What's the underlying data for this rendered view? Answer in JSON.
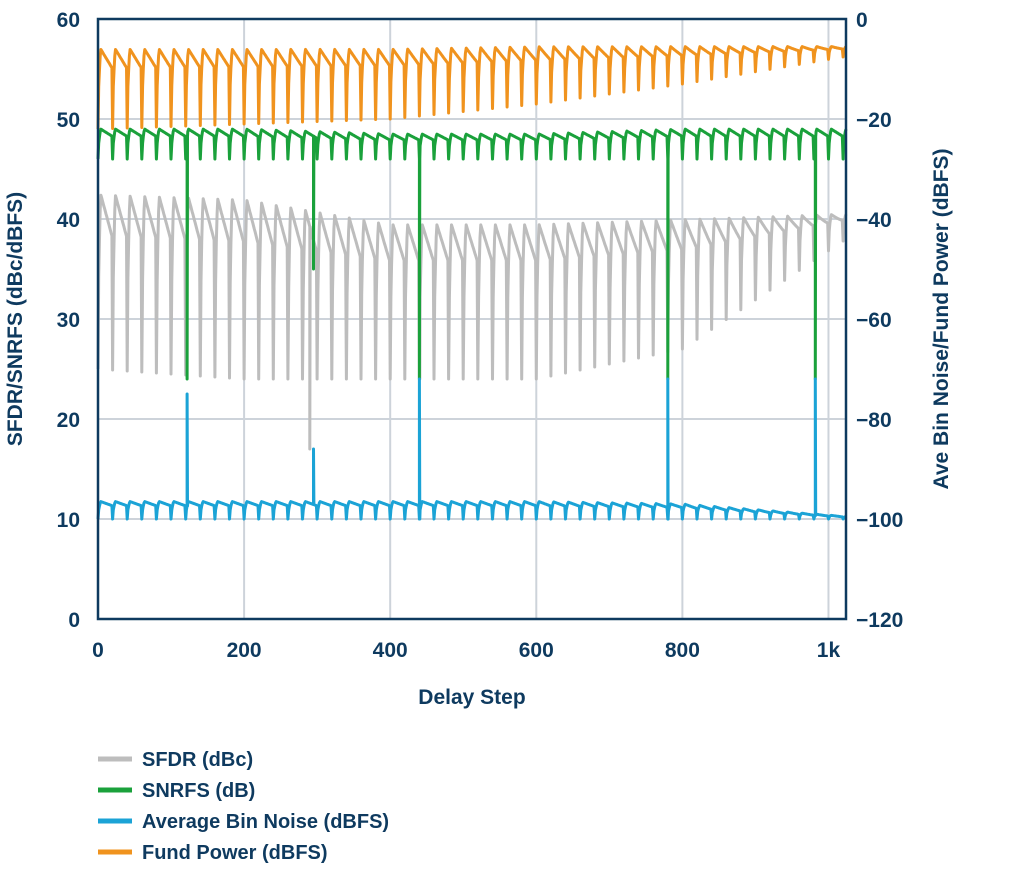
{
  "colors": {
    "axis_text": "#0e3a5f",
    "grid": "#cdd3da",
    "frame": "#0e3a5f",
    "sfdr": "#bdbdbd",
    "snrfs": "#1aa13b",
    "bin_noise": "#1ba3d6",
    "fund_power": "#f0931e"
  },
  "chart_data": {
    "type": "line",
    "xlabel": "Delay Step",
    "ylabel_left": "SFDR/SNRFS (dBc/dBFS)",
    "ylabel_right": "Ave Bin Noise/Fund Power (dBFS)",
    "xlim": [
      0,
      1024
    ],
    "ylim_left": [
      0,
      60
    ],
    "ylim_right": [
      -120,
      0
    ],
    "x_ticks": [
      0,
      200,
      400,
      600,
      800,
      1000
    ],
    "x_tick_labels": [
      "0",
      "200",
      "400",
      "600",
      "800",
      "1k"
    ],
    "y_left_ticks": [
      0,
      10,
      20,
      30,
      40,
      50,
      60
    ],
    "y_left_tick_labels": [
      "0",
      "10",
      "20",
      "30",
      "40",
      "50",
      "60"
    ],
    "y_right_ticks": [
      -120,
      -100,
      -80,
      -60,
      -40,
      -20,
      0
    ],
    "y_right_tick_labels": [
      "−120",
      "−100",
      "−80",
      "−60",
      "−40",
      "−20",
      "0"
    ],
    "grid": true,
    "legend_position": "bottom-left",
    "series": [
      {
        "name": "SFDR (dBc)",
        "axis": "left",
        "color_key": "sfdr",
        "pattern": "sawtooth",
        "dip_period": 20,
        "envelope_x": [
          0,
          200,
          400,
          600,
          800,
          1024
        ],
        "peak": [
          42.5,
          42,
          39.5,
          39.5,
          40,
          40.5
        ],
        "trough": [
          25,
          24,
          24,
          24,
          27,
          38
        ],
        "spikes": [
          {
            "x": 290,
            "value": 17
          },
          {
            "x": 440,
            "value": 24
          }
        ]
      },
      {
        "name": "SNRFS (dB)",
        "axis": "left",
        "color_key": "snrfs",
        "pattern": "sawtooth",
        "dip_period": 20,
        "envelope_x": [
          0,
          200,
          400,
          600,
          800,
          1024
        ],
        "peak": [
          49,
          49,
          48.5,
          48.5,
          49,
          49
        ],
        "trough": [
          46,
          46,
          46,
          46,
          46,
          46
        ],
        "spikes": [
          {
            "x": 122,
            "value": 24
          },
          {
            "x": 295,
            "value": 35
          },
          {
            "x": 440,
            "value": 24
          },
          {
            "x": 780,
            "value": 24
          },
          {
            "x": 982,
            "value": 24
          }
        ]
      },
      {
        "name": "Average Bin Noise (dBFS)",
        "axis": "right",
        "color_key": "bin_noise",
        "pattern": "sawtooth",
        "dip_period": 20,
        "envelope_x": [
          0,
          200,
          400,
          600,
          800,
          1024
        ],
        "peak": [
          -96.5,
          -96.5,
          -96.5,
          -96.5,
          -97,
          -99.5
        ],
        "trough": [
          -100,
          -100,
          -100,
          -100,
          -100,
          -100
        ],
        "spikes": [
          {
            "x": 122,
            "value": -75
          },
          {
            "x": 295,
            "value": -86
          },
          {
            "x": 440,
            "value": -72
          },
          {
            "x": 780,
            "value": -72
          },
          {
            "x": 982,
            "value": -72
          }
        ]
      },
      {
        "name": "Fund Power (dBFS)",
        "axis": "right",
        "color_key": "fund_power",
        "pattern": "sawtooth",
        "dip_period": 20,
        "envelope_x": [
          0,
          200,
          400,
          600,
          800,
          1024
        ],
        "peak": [
          -6,
          -6,
          -6,
          -5.5,
          -5.5,
          -5.5
        ],
        "trough": [
          -22,
          -21,
          -20,
          -17,
          -13,
          -7.5
        ],
        "spikes": []
      }
    ]
  }
}
